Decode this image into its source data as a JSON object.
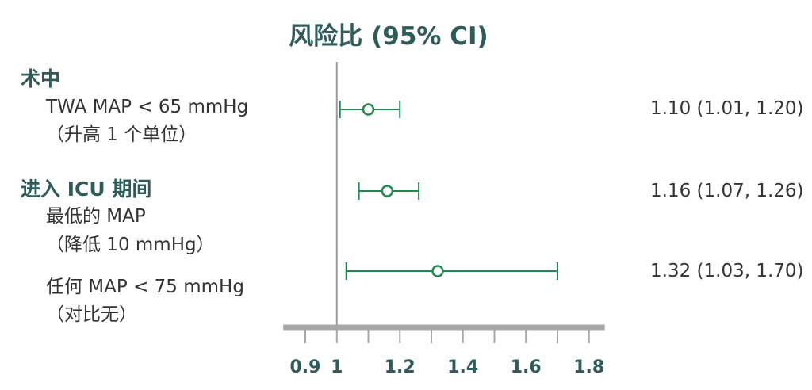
{
  "chart_data": {
    "type": "forest",
    "title": "风险比 (95% CI)",
    "reference_line": 1,
    "x_ticks": [
      0.9,
      1,
      1.2,
      1.4,
      1.6,
      1.8
    ],
    "x_minor_ticks": [
      0.9,
      1,
      1.1,
      1.2,
      1.3,
      1.4,
      1.5,
      1.6,
      1.7,
      1.8
    ],
    "xlim": [
      0.83,
      1.85
    ],
    "sections": [
      {
        "label": "术中"
      },
      {
        "label": "进入 ICU 期间"
      }
    ],
    "rows": [
      {
        "label_line1": "TWA MAP < 65 mmHg",
        "label_line2": "（升高 1 个单位）",
        "hr": 1.1,
        "lo": 1.01,
        "hi": 1.2,
        "ci_text": "1.10 (1.01, 1.20)"
      },
      {
        "label_line1": "最低的 MAP",
        "label_line2": "（降低 10 mmHg）",
        "hr": 1.16,
        "lo": 1.07,
        "hi": 1.26,
        "ci_text": "1.16 (1.07, 1.26)"
      },
      {
        "label_line1": "任何 MAP < 75 mmHg",
        "label_line2": "（对比无）",
        "hr": 1.32,
        "lo": 1.03,
        "hi": 1.7,
        "ci_text": "1.32 (1.03, 1.70)"
      }
    ]
  }
}
